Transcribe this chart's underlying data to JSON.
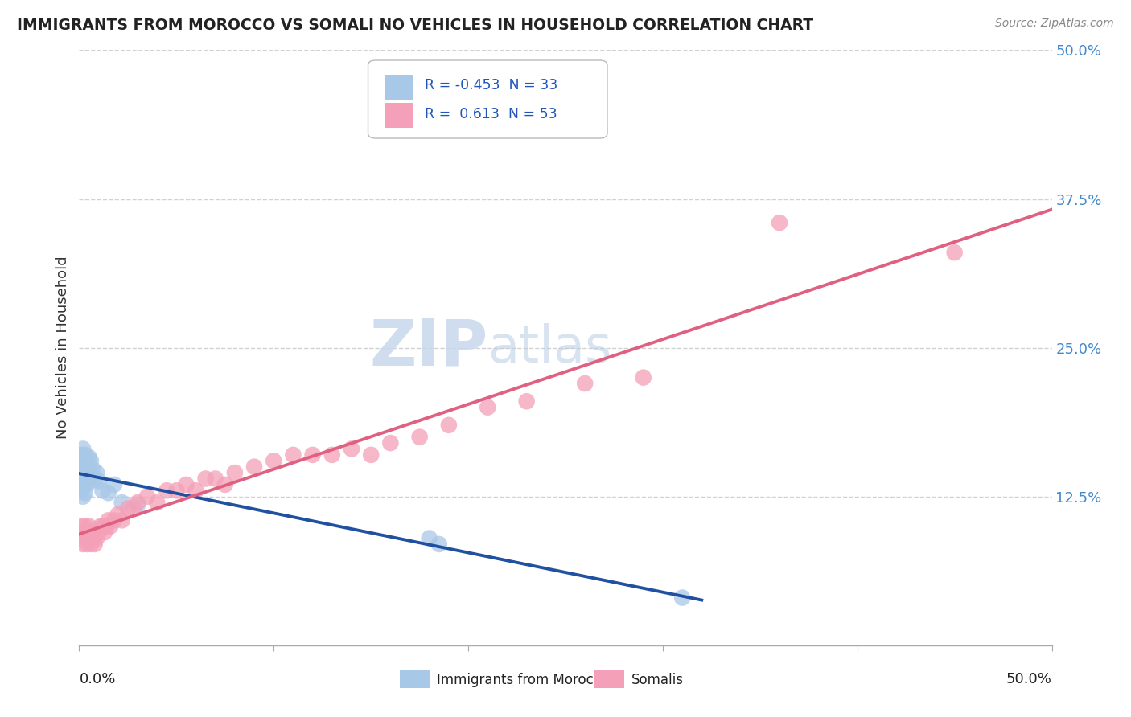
{
  "title": "IMMIGRANTS FROM MOROCCO VS SOMALI NO VEHICLES IN HOUSEHOLD CORRELATION CHART",
  "source": "Source: ZipAtlas.com",
  "ylabel": "No Vehicles in Household",
  "xlim": [
    0.0,
    0.5
  ],
  "ylim": [
    0.0,
    0.5
  ],
  "yticks": [
    0.0,
    0.125,
    0.25,
    0.375,
    0.5
  ],
  "ytick_labels": [
    "",
    "12.5%",
    "25.0%",
    "37.5%",
    "50.0%"
  ],
  "legend_r_morocco": "-0.453",
  "legend_n_morocco": "33",
  "legend_r_somali": " 0.613",
  "legend_n_somali": "53",
  "watermark_zip": "ZIP",
  "watermark_atlas": "atlas",
  "morocco_color": "#a8c8e8",
  "somali_color": "#f4a0b8",
  "morocco_line_color": "#2050a0",
  "somali_line_color": "#e06080",
  "background_color": "#ffffff",
  "morocco_x": [
    0.001,
    0.001,
    0.001,
    0.001,
    0.002,
    0.002,
    0.002,
    0.002,
    0.002,
    0.003,
    0.003,
    0.003,
    0.003,
    0.004,
    0.004,
    0.004,
    0.005,
    0.005,
    0.005,
    0.006,
    0.006,
    0.007,
    0.008,
    0.009,
    0.01,
    0.012,
    0.015,
    0.018,
    0.022,
    0.03,
    0.18,
    0.185,
    0.31
  ],
  "morocco_y": [
    0.16,
    0.15,
    0.14,
    0.13,
    0.165,
    0.155,
    0.145,
    0.135,
    0.125,
    0.16,
    0.148,
    0.138,
    0.128,
    0.155,
    0.145,
    0.135,
    0.158,
    0.148,
    0.138,
    0.155,
    0.142,
    0.148,
    0.14,
    0.145,
    0.138,
    0.13,
    0.128,
    0.135,
    0.12,
    0.118,
    0.09,
    0.085,
    0.04
  ],
  "somali_x": [
    0.001,
    0.002,
    0.002,
    0.003,
    0.003,
    0.004,
    0.004,
    0.005,
    0.005,
    0.006,
    0.006,
    0.007,
    0.008,
    0.009,
    0.01,
    0.011,
    0.012,
    0.013,
    0.014,
    0.015,
    0.016,
    0.018,
    0.02,
    0.022,
    0.025,
    0.028,
    0.03,
    0.035,
    0.04,
    0.045,
    0.05,
    0.055,
    0.06,
    0.065,
    0.07,
    0.075,
    0.08,
    0.09,
    0.1,
    0.11,
    0.12,
    0.13,
    0.14,
    0.15,
    0.16,
    0.175,
    0.19,
    0.21,
    0.23,
    0.26,
    0.29,
    0.36,
    0.45
  ],
  "somali_y": [
    0.1,
    0.085,
    0.095,
    0.09,
    0.1,
    0.085,
    0.095,
    0.09,
    0.1,
    0.085,
    0.095,
    0.09,
    0.085,
    0.09,
    0.095,
    0.1,
    0.1,
    0.095,
    0.1,
    0.105,
    0.1,
    0.105,
    0.11,
    0.105,
    0.115,
    0.115,
    0.12,
    0.125,
    0.12,
    0.13,
    0.13,
    0.135,
    0.13,
    0.14,
    0.14,
    0.135,
    0.145,
    0.15,
    0.155,
    0.16,
    0.16,
    0.16,
    0.165,
    0.16,
    0.17,
    0.175,
    0.185,
    0.2,
    0.205,
    0.22,
    0.225,
    0.355,
    0.33
  ],
  "xtick_positions": [
    0.0,
    0.1,
    0.2,
    0.3,
    0.4,
    0.5
  ]
}
